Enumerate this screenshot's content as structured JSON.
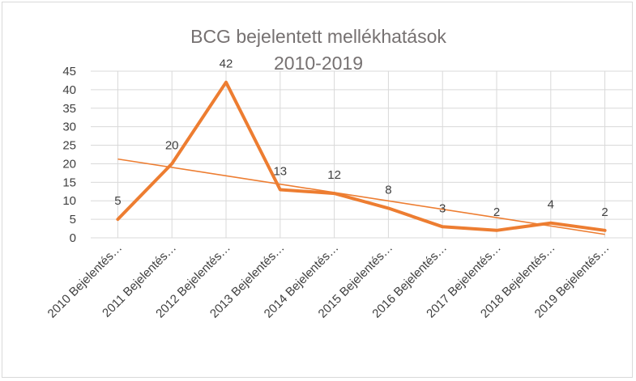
{
  "chart_data": {
    "type": "line",
    "title_line1": "BCG bejelentett mellékhatások",
    "title_line2": "2010-2019",
    "categories": [
      "2010 Bejelentés…",
      "2011 Bejelentés…",
      "2012 Bejelentés…",
      "2013 Bejelentés…",
      "2014  Bejelentés…",
      "2015 Bejelentés…",
      "2016 Bejelentés…",
      "2017 Bejelentés…",
      "2018 Bejelentés…",
      "2019 Bejelentés…"
    ],
    "values": [
      5,
      20,
      42,
      13,
      12,
      8,
      3,
      2,
      4,
      2
    ],
    "data_labels": [
      "5",
      "20",
      "42",
      "13",
      "12",
      "8",
      "3",
      "2",
      "4",
      "2"
    ],
    "ylim": [
      0,
      45
    ],
    "yticks": [
      "0",
      "5",
      "10",
      "15",
      "20",
      "25",
      "30",
      "35",
      "40",
      "45"
    ],
    "trendline": {
      "type": "linear"
    },
    "grid": true,
    "legend": "none",
    "colors": {
      "series": "#ed7d31",
      "grid": "#d9d9d9"
    }
  }
}
